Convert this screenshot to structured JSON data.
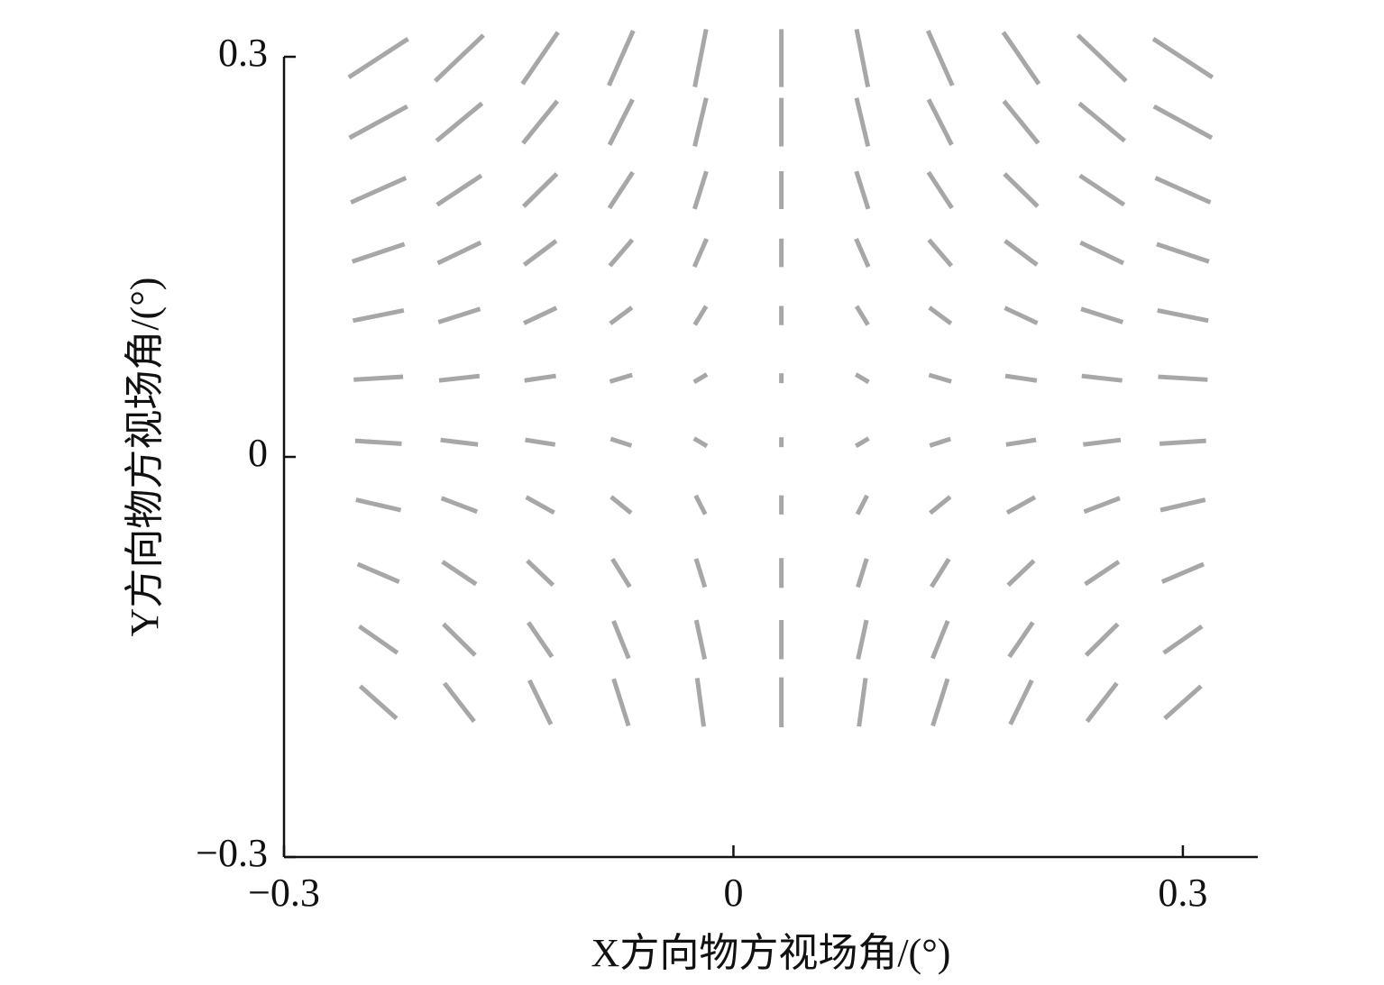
{
  "chart_data": {
    "type": "quiver",
    "xlabel": "X方向物方视场角/(°)",
    "ylabel": "Y方向物方视场角/(°)",
    "xlim": [
      -0.3,
      0.35
    ],
    "ylim": [
      -0.3,
      0.3
    ],
    "xticks": [
      {
        "value": -0.3,
        "label": "−0.3"
      },
      0,
      0.3
    ],
    "yticks": [
      {
        "value": -0.3,
        "label": "−0.3"
      },
      0,
      0.3
    ],
    "color": "#8a8a8a",
    "x": [
      -0.237,
      -0.183,
      -0.129,
      -0.075,
      -0.022,
      0.032,
      0.086,
      0.138,
      0.192,
      0.246,
      0.3
    ],
    "y": [
      0.299,
      0.251,
      0.2,
      0.153,
      0.106,
      0.059,
      0.011,
      -0.036,
      -0.087,
      -0.137,
      -0.184
    ],
    "u": [
      [
        -0.037,
        -0.03,
        -0.022,
        -0.015,
        -0.007,
        0,
        0.007,
        0.015,
        0.022,
        0.03,
        0.037
      ],
      [
        -0.036,
        -0.028,
        -0.021,
        -0.014,
        -0.007,
        0,
        0.007,
        0.014,
        0.021,
        0.028,
        0.036
      ],
      [
        -0.034,
        -0.027,
        -0.02,
        -0.014,
        -0.007,
        0,
        0.007,
        0.014,
        0.02,
        0.027,
        0.034
      ],
      [
        -0.032,
        -0.026,
        -0.019,
        -0.013,
        -0.007,
        0,
        0.007,
        0.013,
        0.019,
        0.026,
        0.032
      ],
      [
        -0.031,
        -0.025,
        -0.019,
        -0.012,
        -0.006,
        0,
        0.006,
        0.012,
        0.019,
        0.025,
        0.031
      ],
      [
        -0.03,
        -0.024,
        -0.018,
        -0.012,
        -0.006,
        0,
        0.006,
        0.012,
        0.018,
        0.024,
        0.03
      ],
      [
        -0.028,
        -0.022,
        -0.017,
        -0.011,
        -0.006,
        0,
        0.006,
        0.011,
        0.017,
        0.022,
        0.028
      ],
      [
        -0.027,
        -0.021,
        -0.016,
        -0.011,
        -0.005,
        0,
        0.005,
        0.011,
        0.016,
        0.021,
        0.027
      ],
      [
        -0.025,
        -0.02,
        -0.015,
        -0.01,
        -0.005,
        0,
        0.005,
        0.01,
        0.015,
        0.02,
        0.025
      ],
      [
        -0.023,
        -0.019,
        -0.014,
        -0.009,
        -0.005,
        0,
        0.005,
        0.009,
        0.014,
        0.019,
        0.023
      ],
      [
        -0.022,
        -0.018,
        -0.013,
        -0.009,
        -0.004,
        0,
        0.004,
        0.009,
        0.013,
        0.018,
        0.022
      ]
    ],
    "v": [
      [
        -0.027,
        -0.032,
        -0.036,
        -0.038,
        -0.04,
        -0.04,
        -0.04,
        -0.038,
        -0.036,
        -0.032,
        -0.027
      ],
      [
        -0.022,
        -0.026,
        -0.029,
        -0.031,
        -0.033,
        -0.033,
        -0.033,
        -0.031,
        -0.029,
        -0.026,
        -0.022
      ],
      [
        -0.017,
        -0.02,
        -0.022,
        -0.024,
        -0.025,
        -0.025,
        -0.025,
        -0.024,
        -0.022,
        -0.02,
        -0.017
      ],
      [
        -0.012,
        -0.014,
        -0.016,
        -0.017,
        -0.018,
        -0.018,
        -0.018,
        -0.017,
        -0.016,
        -0.014,
        -0.012
      ],
      [
        -0.007,
        -0.009,
        -0.01,
        -0.01,
        -0.011,
        -0.011,
        -0.011,
        -0.01,
        -0.01,
        -0.009,
        -0.007
      ],
      [
        -0.002,
        -0.003,
        -0.003,
        -0.004,
        -0.004,
        -0.004,
        -0.004,
        -0.004,
        -0.003,
        -0.003,
        -0.002
      ],
      [
        0.002,
        0.003,
        0.003,
        0.004,
        0.004,
        0.004,
        0.004,
        0.004,
        0.003,
        0.003,
        0.002
      ],
      [
        0.007,
        0.009,
        0.01,
        0.01,
        0.011,
        0.011,
        0.011,
        0.01,
        0.01,
        0.009,
        0.007
      ],
      [
        0.012,
        0.015,
        0.016,
        0.018,
        0.018,
        0.019,
        0.018,
        0.018,
        0.016,
        0.015,
        0.012
      ],
      [
        0.018,
        0.021,
        0.023,
        0.025,
        0.026,
        0.026,
        0.026,
        0.025,
        0.023,
        0.021,
        0.018
      ],
      [
        0.022,
        0.026,
        0.03,
        0.032,
        0.033,
        0.034,
        0.033,
        0.032,
        0.03,
        0.026,
        0.022
      ]
    ]
  }
}
